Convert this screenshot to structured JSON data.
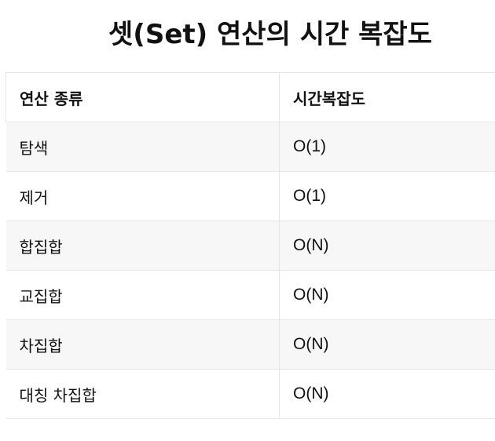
{
  "title": "셋(Set) 연산의 시간 복잡도",
  "table": {
    "headers": [
      "연산 종류",
      "시간복잡도"
    ],
    "rows": [
      {
        "operation": "탐색",
        "complexity": "O(1)"
      },
      {
        "operation": "제거",
        "complexity": "O(1)"
      },
      {
        "operation": "합집합",
        "complexity": "O(N)"
      },
      {
        "operation": "교집합",
        "complexity": "O(N)"
      },
      {
        "operation": "차집합",
        "complexity": "O(N)"
      },
      {
        "operation": "대칭 차집합",
        "complexity": "O(N)"
      }
    ]
  }
}
